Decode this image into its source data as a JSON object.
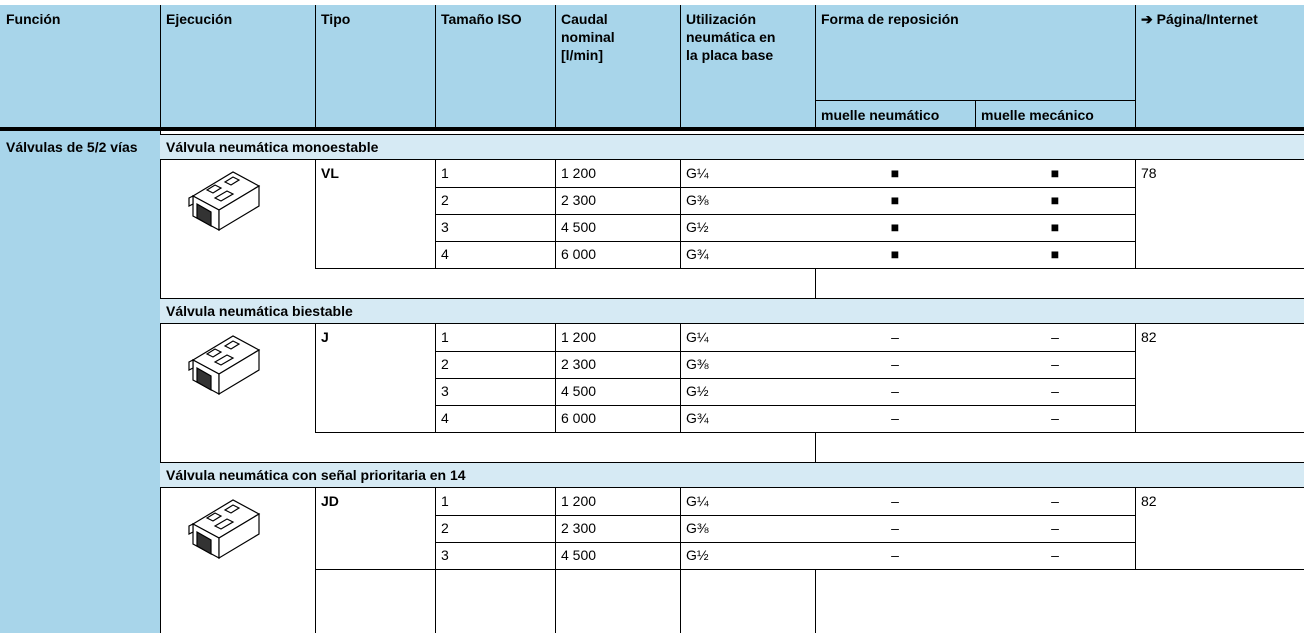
{
  "header": {
    "columns": [
      "Función",
      "Ejecución",
      "Tipo",
      "Tamaño ISO",
      "Caudal nominal [l/min]",
      "Utilización neumática en la placa base",
      "Forma de reposición",
      "➔ Página/Internet"
    ],
    "subcolumns": [
      "muelle neumático",
      "muelle mecánico"
    ]
  },
  "function": "Válvulas de 5/2 vías",
  "sections": [
    {
      "title": "Válvula neumática monoestable",
      "type": "VL",
      "page": "78",
      "rows": [
        [
          "1",
          "1 200",
          "G¼",
          "■",
          "■"
        ],
        [
          "2",
          "2 300",
          "G⅜",
          "■",
          "■"
        ],
        [
          "3",
          "4 500",
          "G½",
          "■",
          "■"
        ],
        [
          "4",
          "6 000",
          "G¾",
          "■",
          "■"
        ]
      ]
    },
    {
      "title": "Válvula neumática biestable",
      "type": "J",
      "page": "82",
      "rows": [
        [
          "1",
          "1 200",
          "G¼",
          "–",
          "–"
        ],
        [
          "2",
          "2 300",
          "G⅜",
          "–",
          "–"
        ],
        [
          "3",
          "4 500",
          "G½",
          "–",
          "–"
        ],
        [
          "4",
          "6 000",
          "G¾",
          "–",
          "–"
        ]
      ]
    },
    {
      "title": "Válvula neumática con señal prioritaria en 14",
      "type": "JD",
      "page": "82",
      "rows": [
        [
          "1",
          "1 200",
          "G¼",
          "–",
          "–"
        ],
        [
          "2",
          "2 300",
          "G⅜",
          "–",
          "–"
        ],
        [
          "3",
          "4 500",
          "G½",
          "–",
          "–"
        ]
      ]
    }
  ]
}
